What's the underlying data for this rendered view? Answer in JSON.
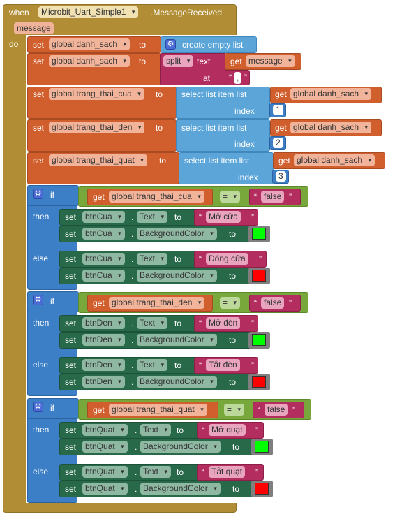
{
  "event": {
    "when_label": "when",
    "component": "Microbit_Uart_Simple1",
    "event_name": ".MessageReceived",
    "param": "message",
    "do_label": "do"
  },
  "kw": {
    "set": "set",
    "to": "to",
    "get": "get",
    "create_empty_list": "create empty list",
    "split": "split",
    "text": "text",
    "at": "at",
    "comma": ",",
    "select_list_item": "select list item  list",
    "index": "index",
    "if": "if",
    "then": "then",
    "else": "else",
    "eq": "=",
    "dot": ".",
    "false": "false",
    "text_prop": "Text",
    "bg_prop": "BackgroundColor"
  },
  "vars": {
    "danh_sach": "global danh_sach",
    "message": "message",
    "cua": "global trang_thai_cua",
    "den": "global trang_thai_den",
    "quat": "global trang_thai_quat"
  },
  "indexes": [
    "1",
    "2",
    "3"
  ],
  "conditions": [
    {
      "var": "global trang_thai_cua",
      "button": "btnCua",
      "then_text": "Mở cửa",
      "else_text": "Đóng cửa"
    },
    {
      "var": "global trang_thai_den",
      "button": "btnDen",
      "then_text": "Mở đèn",
      "else_text": "Tắt đèn"
    },
    {
      "var": "global trang_thai_quat",
      "button": "btnQuat",
      "then_text": "Mở quạt",
      "else_text": "Tắt quạt"
    }
  ],
  "colors": {
    "then_color": "#00ff00",
    "else_color": "#ff0000"
  }
}
